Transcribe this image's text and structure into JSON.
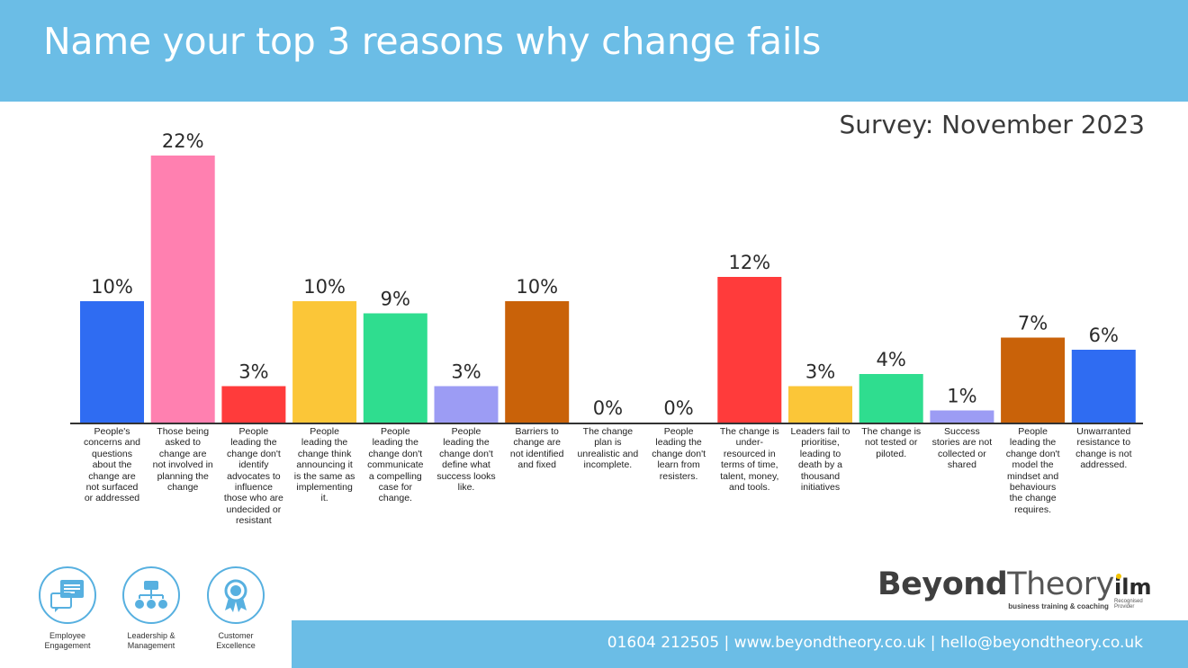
{
  "header": {
    "title": "Name your top 3 reasons why change fails"
  },
  "subtitle": "Survey: November  2023",
  "chart_data": {
    "type": "bar",
    "ylim": [
      0,
      22
    ],
    "grid": false,
    "categories": [
      "People's concerns and questions about the change are not surfaced or addressed",
      "Those being asked to change are not involved in planning the change",
      "People leading the change don't identify advocates to influence those who are undecided or resistant",
      "People leading the change think announcing it is the same as implementing it.",
      "People leading the change don't communicate a compelling case for change.",
      "People leading the change don't define what success looks like.",
      "Barriers to change are not identified and fixed",
      "The change plan is unrealistic and incomplete.",
      "People leading the change don't learn from resisters.",
      "The change is under-resourced in terms of time, talent, money, and tools.",
      "Leaders fail to prioritise, leading to death by a thousand initiatives",
      "The change is not tested or piloted.",
      "Success stories are not collected or shared",
      "People leading the change don't model the mindset and behaviours the change requires.",
      "Unwarranted resistance to change is not addressed."
    ],
    "category_lines": [
      [
        "People's",
        "concerns and",
        "questions",
        "about the",
        "change are",
        "not surfaced",
        "or addressed"
      ],
      [
        "Those being",
        "asked to",
        "change are",
        "not involved in",
        "planning the",
        "change"
      ],
      [
        "People",
        "leading the",
        "change don't",
        "identify",
        "advocates to",
        "influence",
        "those who are",
        "undecided or",
        "resistant"
      ],
      [
        "People",
        "leading the",
        "change think",
        "announcing it",
        "is the same as",
        "implementing",
        "it."
      ],
      [
        "People",
        "leading the",
        "change don't",
        "communicate",
        "a compelling",
        "case for",
        "change."
      ],
      [
        "People",
        "leading the",
        "change don't",
        "define what",
        "success looks",
        "like."
      ],
      [
        "Barriers to",
        "change are",
        "not identified",
        "and fixed"
      ],
      [
        "The change",
        "plan is",
        "unrealistic and",
        "incomplete."
      ],
      [
        "People",
        "leading the",
        "change don't",
        "learn from",
        "resisters."
      ],
      [
        "The change is",
        "under-",
        "resourced in",
        "terms of time,",
        "talent, money,",
        "and tools."
      ],
      [
        "Leaders fail to",
        "prioritise,",
        "leading to",
        "death by a",
        "thousand",
        "initiatives"
      ],
      [
        "The change is",
        "not tested or",
        "piloted."
      ],
      [
        "Success",
        "stories are not",
        "collected or",
        "shared"
      ],
      [
        "People",
        "leading the",
        "change don't",
        "model the",
        "mindset and",
        "behaviours",
        "the change",
        "requires."
      ],
      [
        "Unwarranted",
        "resistance to",
        "change is not",
        "addressed."
      ]
    ],
    "values": [
      10,
      22,
      3,
      10,
      9,
      3,
      10,
      0,
      0,
      12,
      3,
      4,
      1,
      7,
      6
    ],
    "value_labels": [
      "10%",
      "22%",
      "3%",
      "10%",
      "9%",
      "3%",
      "10%",
      "0%",
      "0%",
      "12%",
      "3%",
      "4%",
      "1%",
      "7%",
      "6%"
    ],
    "colors": [
      "#2f6cf2",
      "#ff80b0",
      "#ff3b3b",
      "#fbc638",
      "#2fdd8f",
      "#9c9cf4",
      "#c96209",
      "#c96209",
      "#c96209",
      "#ff3b3b",
      "#fbc638",
      "#2fdd8f",
      "#9c9cf4",
      "#c96209",
      "#2f6cf2"
    ]
  },
  "services": [
    {
      "label": "Employee Engagement",
      "icon": "chat-bubbles-icon"
    },
    {
      "label": "Leadership & Management",
      "icon": "org-chart-icon"
    },
    {
      "label": "Customer Excellence",
      "icon": "award-rosette-icon"
    }
  ],
  "logo": {
    "beyond": "Beyond",
    "theory": "Theory",
    "tagline": "business training & coaching"
  },
  "ilm": {
    "word": "ilm",
    "sub1": "Recognised",
    "sub2": "Provider"
  },
  "footer": {
    "contact": "01604 212505 | www.beyondtheory.co.uk | hello@beyondtheory.co.uk"
  },
  "theme": {
    "accent": "#6bbde6"
  }
}
